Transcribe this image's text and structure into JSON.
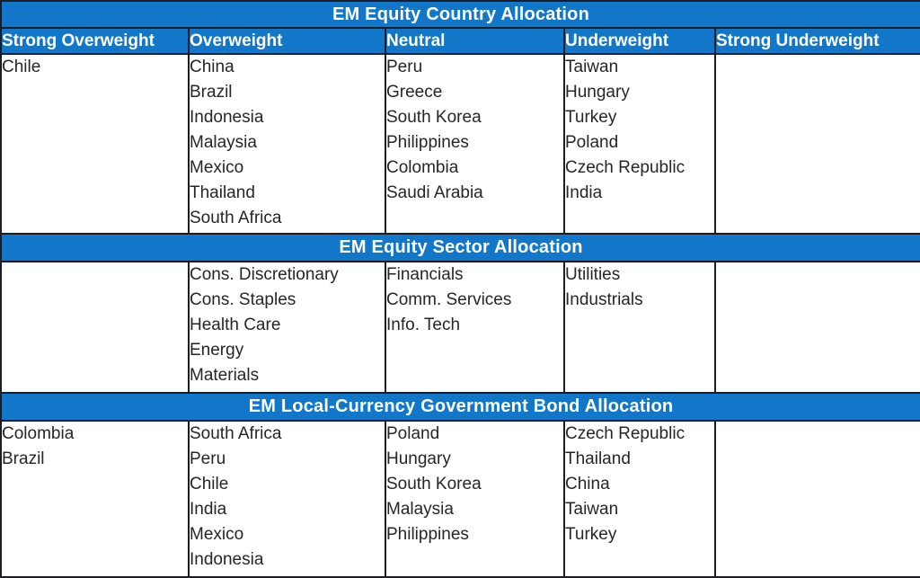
{
  "table": {
    "columns": [
      {
        "id": "strong-overweight",
        "label": "Strong Overweight"
      },
      {
        "id": "overweight",
        "label": "Overweight"
      },
      {
        "id": "neutral",
        "label": "Neutral"
      },
      {
        "id": "underweight",
        "label": "Underweight"
      },
      {
        "id": "strong-underweight",
        "label": "Strong Underweight"
      }
    ],
    "sections": [
      {
        "title": "EM Equity Country Allocation",
        "cells": [
          [
            "Chile"
          ],
          [
            "China",
            "Brazil",
            "Indonesia",
            "Malaysia",
            "Mexico",
            "Thailand",
            "South Africa"
          ],
          [
            "Peru",
            "Greece",
            "South Korea",
            "Philippines",
            "Colombia",
            "Saudi Arabia"
          ],
          [
            "Taiwan",
            "Hungary",
            "Turkey",
            "Poland",
            "Czech Republic",
            "India"
          ],
          []
        ]
      },
      {
        "title": "EM Equity Sector Allocation",
        "cells": [
          [],
          [
            "Cons. Discretionary",
            "Cons. Staples",
            "Health Care",
            "Energy",
            "Materials"
          ],
          [
            "Financials",
            "Comm. Services",
            "Info. Tech"
          ],
          [
            "Utilities",
            "Industrials"
          ],
          []
        ]
      },
      {
        "title": "EM Local-Currency Government Bond Allocation",
        "cells": [
          [
            "Colombia",
            "Brazil"
          ],
          [
            "South Africa",
            "Peru",
            "Chile",
            "India",
            "Mexico",
            "Indonesia"
          ],
          [
            "Poland",
            "Hungary",
            "South Korea",
            "Malaysia",
            "Philippines"
          ],
          [
            "Czech Republic",
            "Thailand",
            "China",
            "Taiwan",
            "Turkey"
          ],
          []
        ]
      }
    ],
    "colors": {
      "header_bg": "#1277c8",
      "header_text": "#ffffff",
      "body_text": "#262626",
      "border": "#1b1c26",
      "body_bg": "#ffffff"
    }
  }
}
